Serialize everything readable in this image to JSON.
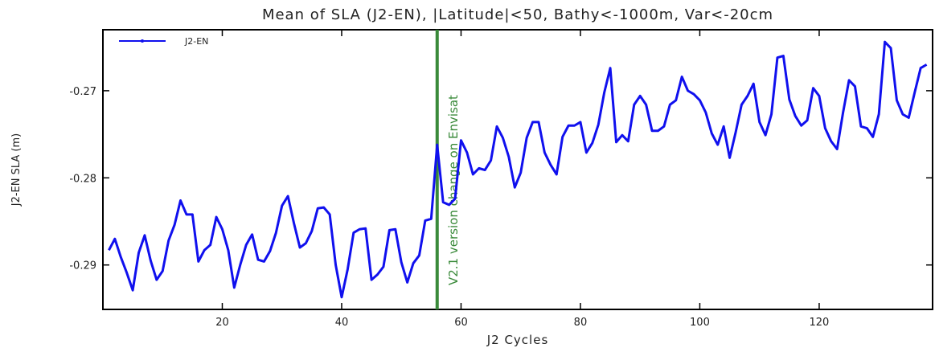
{
  "chart_data": {
    "type": "line",
    "title": "Mean of SLA (J2-EN), |Latitude|<50, Bathy<-1000m, Var<-20cm",
    "x_label": "J2 Cycles",
    "y_label": "J2-EN SLA (m)",
    "x": [
      1,
      2,
      3,
      4,
      5,
      6,
      7,
      8,
      9,
      10,
      11,
      12,
      13,
      14,
      15,
      16,
      17,
      18,
      19,
      20,
      21,
      22,
      23,
      24,
      25,
      26,
      27,
      28,
      29,
      30,
      31,
      32,
      33,
      34,
      35,
      36,
      37,
      38,
      39,
      40,
      41,
      42,
      43,
      44,
      45,
      46,
      47,
      48,
      49,
      50,
      51,
      52,
      53,
      54,
      55,
      56,
      57,
      58,
      59,
      60,
      61,
      62,
      63,
      64,
      65,
      66,
      67,
      68,
      69,
      70,
      71,
      72,
      73,
      74,
      75,
      76,
      77,
      78,
      79,
      80,
      81,
      82,
      83,
      84,
      85,
      86,
      87,
      88,
      89,
      90,
      91,
      92,
      93,
      94,
      95,
      96,
      97,
      98,
      99,
      100,
      101,
      102,
      103,
      104,
      105,
      106,
      107,
      108,
      109,
      110,
      111,
      112,
      113,
      114,
      115,
      116,
      117,
      118,
      119,
      120,
      121,
      122,
      123,
      124,
      125,
      126,
      127,
      128,
      129,
      130,
      131,
      132,
      133,
      134,
      135,
      136,
      137,
      138
    ],
    "series": [
      {
        "name": "J2-EN",
        "color": "#1010ee",
        "values": [
          -0.2883,
          -0.287,
          -0.2891,
          -0.2909,
          -0.2929,
          -0.2886,
          -0.2866,
          -0.2895,
          -0.2917,
          -0.2907,
          -0.2872,
          -0.2854,
          -0.2826,
          -0.2842,
          -0.2842,
          -0.2896,
          -0.2883,
          -0.2877,
          -0.2845,
          -0.2859,
          -0.2883,
          -0.2926,
          -0.29,
          -0.2877,
          -0.2865,
          -0.2894,
          -0.2896,
          -0.2884,
          -0.2863,
          -0.2832,
          -0.2821,
          -0.2852,
          -0.288,
          -0.2875,
          -0.2861,
          -0.2835,
          -0.2834,
          -0.2842,
          -0.29,
          -0.2937,
          -0.2905,
          -0.2863,
          -0.2859,
          -0.2858,
          -0.2917,
          -0.2911,
          -0.2902,
          -0.286,
          -0.2859,
          -0.2897,
          -0.292,
          -0.2898,
          -0.2889,
          -0.2849,
          -0.2847,
          -0.2762,
          -0.2828,
          -0.2831,
          -0.2824,
          -0.2757,
          -0.2771,
          -0.2796,
          -0.2789,
          -0.2791,
          -0.278,
          -0.2741,
          -0.2754,
          -0.2776,
          -0.2811,
          -0.2794,
          -0.2754,
          -0.2736,
          -0.2736,
          -0.2771,
          -0.2785,
          -0.2796,
          -0.2753,
          -0.274,
          -0.274,
          -0.2736,
          -0.2771,
          -0.276,
          -0.2739,
          -0.2702,
          -0.2674,
          -0.2759,
          -0.2751,
          -0.2758,
          -0.2716,
          -0.2706,
          -0.2716,
          -0.2746,
          -0.2746,
          -0.2741,
          -0.2716,
          -0.2711,
          -0.2684,
          -0.27,
          -0.2704,
          -0.2711,
          -0.2725,
          -0.2749,
          -0.2762,
          -0.2741,
          -0.2777,
          -0.2748,
          -0.2716,
          -0.2706,
          -0.2692,
          -0.2736,
          -0.2751,
          -0.2727,
          -0.2662,
          -0.266,
          -0.271,
          -0.2729,
          -0.274,
          -0.2734,
          -0.2697,
          -0.2706,
          -0.2743,
          -0.2758,
          -0.2767,
          -0.2725,
          -0.2688,
          -0.2695,
          -0.2741,
          -0.2743,
          -0.2753,
          -0.2727,
          -0.2644,
          -0.2651,
          -0.2711,
          -0.2727,
          -0.2731,
          -0.2702,
          -0.2674,
          -0.267
        ]
      }
    ],
    "xlim": [
      0,
      139
    ],
    "ylim": [
      -0.2951,
      -0.263
    ],
    "xticks": [
      20,
      40,
      60,
      80,
      100,
      120
    ],
    "yticks": [
      -0.29,
      -0.28,
      -0.27
    ],
    "legend": "upper left",
    "vline": {
      "x": 56,
      "color": "#3a8a3a",
      "label": "V2.1 version change on Envisat"
    }
  }
}
